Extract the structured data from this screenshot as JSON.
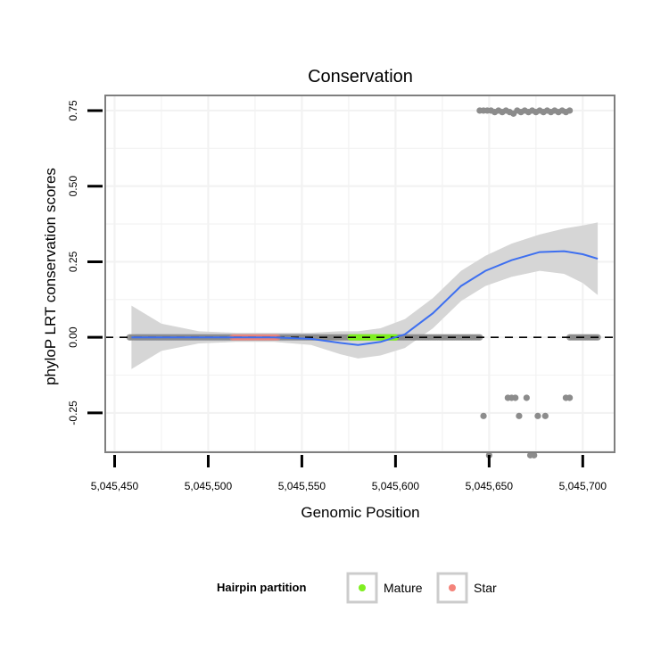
{
  "chart_data": {
    "type": "scatter",
    "title": "Conservation",
    "xlabel": "Genomic Position",
    "ylabel": "phyloP LRT conservation scores",
    "xlim": [
      5045445,
      5045717
    ],
    "ylim": [
      -0.38,
      0.8
    ],
    "x_ticks": [
      5045450,
      5045500,
      5045550,
      5045600,
      5045650,
      5045700
    ],
    "x_tick_labels": [
      "5,045,450",
      "5,045,500",
      "5,045,550",
      "5,045,600",
      "5,045,650",
      "5,045,700"
    ],
    "y_ticks": [
      -0.25,
      0.0,
      0.25,
      0.5,
      0.75
    ],
    "y_tick_labels": [
      "-0.25",
      "0.00",
      "0.25",
      "0.50",
      "0.75"
    ],
    "reference_line_y": 0.0,
    "legend": {
      "title": "Hairpin partition",
      "position": "bottom",
      "entries": [
        {
          "label": "Mature",
          "color": "#7fef20"
        },
        {
          "label": "Star",
          "color": "#f4837a"
        }
      ]
    },
    "colors": {
      "points": "#8c8c8c",
      "smooth": "#3d6ff0",
      "ribbon": "#d6d6d6",
      "mature": "#7fef20",
      "star": "#f4837a",
      "background_region": "#6f96ee",
      "panel_border": "#7f7f7f"
    },
    "zero_points_range": [
      5045458,
      5045645
    ],
    "zero_points_range_2": [
      5045693,
      5045708
    ],
    "mature_range": [
      5045576,
      5045600
    ],
    "star_range": [
      5045513,
      5045537
    ],
    "blue_region": [
      5045460,
      5045560
    ],
    "points": [
      {
        "x": 5045645,
        "y": 0.75
      },
      {
        "x": 5045647,
        "y": 0.75
      },
      {
        "x": 5045649,
        "y": 0.75
      },
      {
        "x": 5045651,
        "y": 0.75
      },
      {
        "x": 5045653,
        "y": 0.745
      },
      {
        "x": 5045655,
        "y": 0.75
      },
      {
        "x": 5045657,
        "y": 0.745
      },
      {
        "x": 5045659,
        "y": 0.75
      },
      {
        "x": 5045661,
        "y": 0.745
      },
      {
        "x": 5045663,
        "y": 0.74
      },
      {
        "x": 5045665,
        "y": 0.75
      },
      {
        "x": 5045667,
        "y": 0.745
      },
      {
        "x": 5045669,
        "y": 0.75
      },
      {
        "x": 5045671,
        "y": 0.745
      },
      {
        "x": 5045673,
        "y": 0.75
      },
      {
        "x": 5045675,
        "y": 0.745
      },
      {
        "x": 5045677,
        "y": 0.75
      },
      {
        "x": 5045679,
        "y": 0.745
      },
      {
        "x": 5045681,
        "y": 0.75
      },
      {
        "x": 5045683,
        "y": 0.745
      },
      {
        "x": 5045685,
        "y": 0.75
      },
      {
        "x": 5045687,
        "y": 0.745
      },
      {
        "x": 5045689,
        "y": 0.75
      },
      {
        "x": 5045691,
        "y": 0.745
      },
      {
        "x": 5045693,
        "y": 0.75
      },
      {
        "x": 5045647,
        "y": -0.26
      },
      {
        "x": 5045650,
        "y": -0.39
      },
      {
        "x": 5045660,
        "y": -0.2
      },
      {
        "x": 5045662,
        "y": -0.2
      },
      {
        "x": 5045664,
        "y": -0.2
      },
      {
        "x": 5045666,
        "y": -0.26
      },
      {
        "x": 5045670,
        "y": -0.2
      },
      {
        "x": 5045672,
        "y": -0.39
      },
      {
        "x": 5045674,
        "y": -0.39
      },
      {
        "x": 5045676,
        "y": -0.26
      },
      {
        "x": 5045680,
        "y": -0.26
      },
      {
        "x": 5045691,
        "y": -0.2
      },
      {
        "x": 5045693,
        "y": -0.2
      }
    ],
    "smooth_line": [
      {
        "x": 5045459,
        "y": 0.0,
        "lo": -0.105,
        "hi": 0.105
      },
      {
        "x": 5045475,
        "y": 0.0,
        "lo": -0.045,
        "hi": 0.045
      },
      {
        "x": 5045495,
        "y": 0.0,
        "lo": -0.02,
        "hi": 0.02
      },
      {
        "x": 5045515,
        "y": 0.0,
        "lo": -0.015,
        "hi": 0.015
      },
      {
        "x": 5045535,
        "y": 0.0,
        "lo": -0.015,
        "hi": 0.015
      },
      {
        "x": 5045555,
        "y": -0.005,
        "lo": -0.025,
        "hi": 0.015
      },
      {
        "x": 5045570,
        "y": -0.018,
        "lo": -0.055,
        "hi": 0.02
      },
      {
        "x": 5045580,
        "y": -0.025,
        "lo": -0.07,
        "hi": 0.02
      },
      {
        "x": 5045592,
        "y": -0.015,
        "lo": -0.06,
        "hi": 0.03
      },
      {
        "x": 5045605,
        "y": 0.01,
        "lo": -0.035,
        "hi": 0.06
      },
      {
        "x": 5045620,
        "y": 0.08,
        "lo": 0.03,
        "hi": 0.13
      },
      {
        "x": 5045635,
        "y": 0.17,
        "lo": 0.12,
        "hi": 0.22
      },
      {
        "x": 5045648,
        "y": 0.22,
        "lo": 0.17,
        "hi": 0.27
      },
      {
        "x": 5045662,
        "y": 0.255,
        "lo": 0.2,
        "hi": 0.31
      },
      {
        "x": 5045677,
        "y": 0.282,
        "lo": 0.22,
        "hi": 0.34
      },
      {
        "x": 5045690,
        "y": 0.285,
        "lo": 0.21,
        "hi": 0.36
      },
      {
        "x": 5045700,
        "y": 0.275,
        "lo": 0.18,
        "hi": 0.37
      },
      {
        "x": 5045708,
        "y": 0.26,
        "lo": 0.14,
        "hi": 0.38
      }
    ]
  }
}
